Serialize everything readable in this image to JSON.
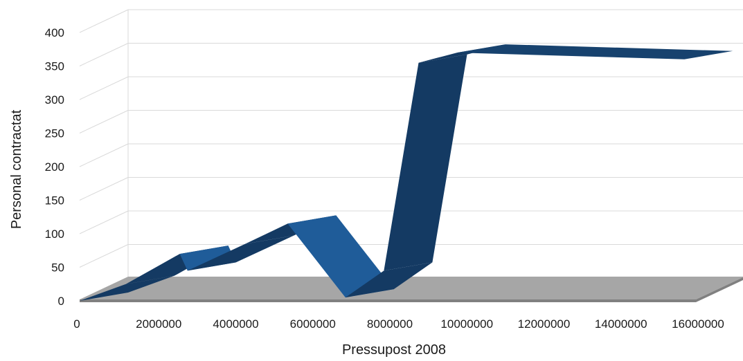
{
  "chart_data": {
    "type": "area",
    "title": "",
    "xlabel": "Pressupost 2008",
    "ylabel": "Personal contractat",
    "xlim": [
      0,
      16000000
    ],
    "ylim": [
      0,
      400
    ],
    "xticks": [
      "0",
      "2000000",
      "4000000",
      "6000000",
      "8000000",
      "10000000",
      "12000000",
      "14000000",
      "16000000"
    ],
    "yticks": [
      "0",
      "50",
      "100",
      "150",
      "200",
      "250",
      "300",
      "350",
      "400"
    ],
    "grid": true,
    "legend": "none",
    "style": "3d-ribbon",
    "series": [
      {
        "x": [
          0,
          1200000,
          2600000,
          2800000,
          4300000,
          5400000,
          6900000,
          7900000,
          8800000,
          9800000,
          15700000
        ],
        "values": [
          0,
          25,
          70,
          45,
          85,
          115,
          5,
          45,
          355,
          370,
          360
        ]
      }
    ],
    "colors": {
      "ribbon_front": "#1f5c99",
      "ribbon_top": "#17426e",
      "ribbon_dark": "#143a63",
      "floor": "#a6a6a6",
      "floor_edge": "#808080",
      "grid": "#d9d9d9"
    }
  }
}
